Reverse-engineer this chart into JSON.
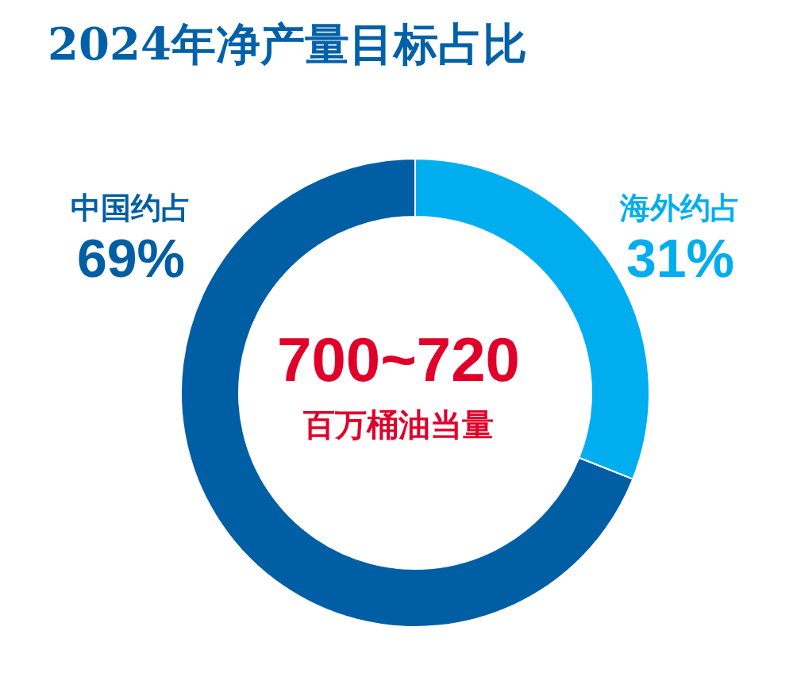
{
  "chart_data": {
    "type": "donut",
    "title": "2024年净产量目标占比",
    "categories": [
      "中国约占",
      "海外约占"
    ],
    "values": [
      69,
      31
    ],
    "colors": [
      "#005ea4",
      "#00aeef"
    ],
    "value_labels": [
      "69%",
      "31%"
    ],
    "annotations": [
      "700~720",
      "百万桶油当量"
    ],
    "legend": false
  }
}
